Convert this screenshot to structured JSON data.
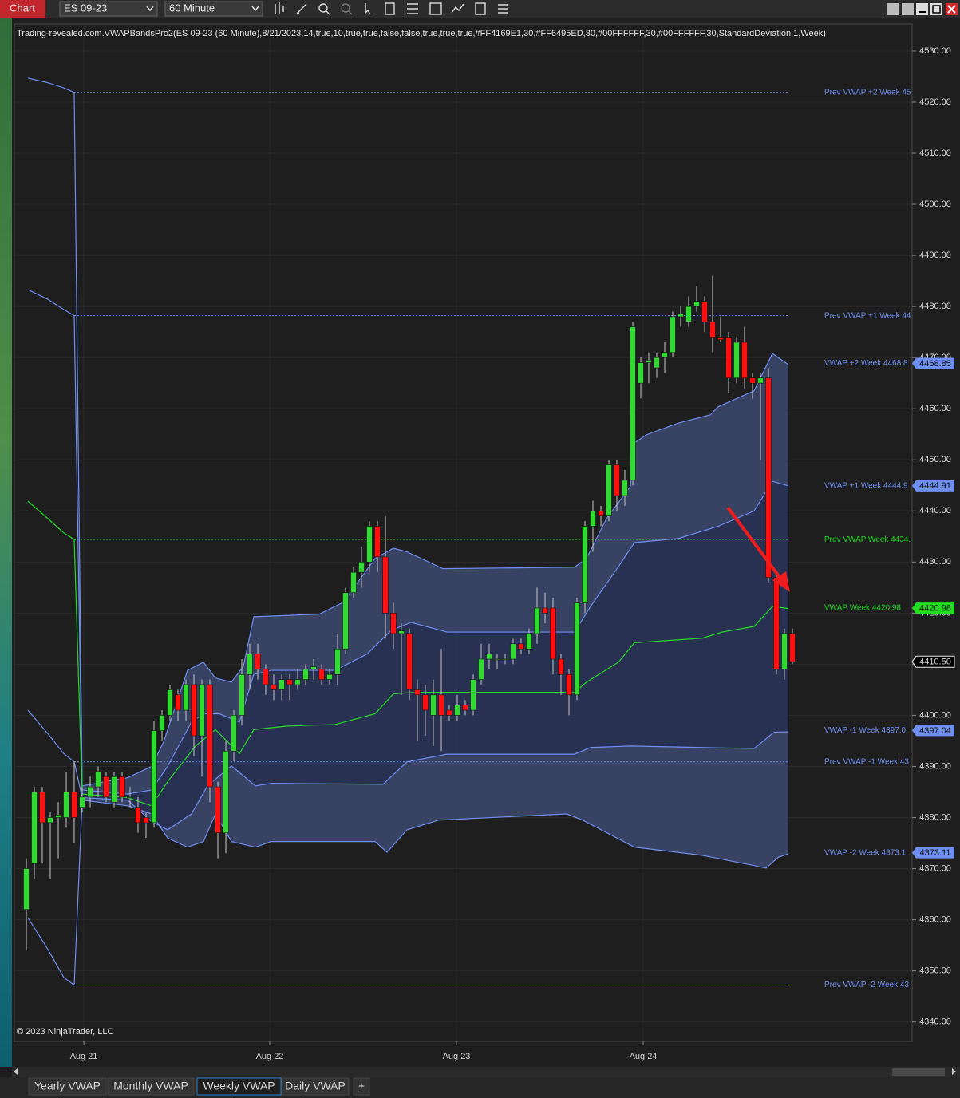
{
  "toolbar": {
    "app": "Chart",
    "instrument": "ES 09-23",
    "interval": "60 Minute"
  },
  "tabs": [
    "Yearly VWAP",
    "Monthly VWAP",
    "Weekly VWAP",
    "Daily VWAP",
    "+"
  ],
  "active_tab": 2,
  "chart_data": {
    "type": "candlestick",
    "title": "Trading-revealed.com.VWAPBandsPro2(ES 09-23 (60 Minute),8/21/2023,14,true,10,true,true,false,false,true,true,true,#FF4169E1,30,#FF6495ED,30,#00FFFFFF,30,#00FFFFFF,30,StandardDeviation,1,Week)",
    "footer": "© 2023 NinjaTrader, LLC",
    "up_color": "#33d933",
    "down_color": "#ff1010",
    "wick_color": "#c8c8c8",
    "open": [
      4362,
      4371,
      4385,
      4379,
      4380,
      4380,
      4385,
      4382,
      4384,
      4386,
      4388,
      4383,
      4388,
      4384,
      4382,
      4380,
      4379,
      4397,
      4400,
      4404,
      4401,
      4406,
      4396,
      4406,
      4386,
      4377,
      4393,
      4400,
      4408,
      4412,
      4409,
      4406,
      4405,
      4407,
      4406,
      4407,
      4409,
      4409,
      4407,
      4408,
      4413,
      4424,
      4428,
      4430,
      4437,
      4431,
      4420,
      4416,
      4416,
      4405,
      4404,
      4400,
      4404,
      4401,
      4400,
      4402,
      4401,
      4407,
      4411,
      4411,
      4411,
      4411,
      4414,
      4413,
      4416,
      4421,
      4421,
      4411,
      4408,
      4404,
      4422,
      4437,
      4440,
      4439,
      4449,
      4443,
      4446,
      4465,
      4469,
      4468,
      4470,
      4471,
      4478,
      4477,
      4480,
      4481,
      4477,
      4474,
      4474,
      4466,
      4473,
      4466,
      4465,
      4466,
      4427,
      4409,
      4416
    ],
    "high": [
      4372,
      4386,
      4386,
      4381,
      4383,
      4389,
      4391,
      4386,
      4388,
      4390,
      4389,
      4389,
      4389,
      4386,
      4384,
      4381,
      4399,
      4401,
      4406,
      4405,
      4407,
      4408,
      4407,
      4407,
      4387,
      4395,
      4401,
      4411,
      4414,
      4414,
      4410,
      4408,
      4408,
      4408,
      4409,
      4410,
      4411,
      4410,
      4409,
      4416,
      4425,
      4429,
      4433,
      4438,
      4438,
      4439,
      4422,
      4418,
      4417,
      4407,
      4406,
      4407,
      4413,
      4402,
      4404,
      4403,
      4408,
      4414,
      4414,
      4412,
      4412,
      4415,
      4415,
      4417,
      4425,
      4424,
      4423,
      4412,
      4409,
      4423,
      4438,
      4442,
      4441,
      4450,
      4450,
      4448,
      4477,
      4470,
      4471,
      4471,
      4473,
      4479,
      4480,
      4482,
      4484,
      4482,
      4486,
      4478,
      4475,
      4474,
      4476,
      4467,
      4467,
      4468,
      4428,
      4417,
      4417
    ],
    "low": [
      4354,
      4368,
      4371,
      4368,
      4372,
      4378,
      4375,
      4381,
      4382,
      4384,
      4383,
      4382,
      4383,
      4382,
      4377,
      4376,
      4378,
      4395,
      4399,
      4399,
      4399,
      4392,
      4388,
      4383,
      4372,
      4373,
      4391,
      4398,
      4405,
      4407,
      4404,
      4403,
      4403,
      4403,
      4405,
      4406,
      4407,
      4406,
      4406,
      4406,
      4412,
      4423,
      4425,
      4428,
      4428,
      4415,
      4413,
      4404,
      4403,
      4395,
      4396,
      4394,
      4393,
      4399,
      4399,
      4400,
      4400,
      4406,
      4409,
      4409,
      4410,
      4410,
      4412,
      4412,
      4414,
      4418,
      4408,
      4404,
      4400,
      4403,
      4420,
      4432,
      4437,
      4438,
      4440,
      4441,
      4445,
      4462,
      4465,
      4466,
      4467,
      4470,
      4476,
      4476,
      4479,
      4475,
      4471,
      4473,
      4463,
      4465,
      4464,
      4462,
      4450,
      4426,
      4408,
      4407,
      4410
    ],
    "close": [
      4370,
      4385,
      4379,
      4380,
      4380.5,
      4385,
      4380,
      4384,
      4386,
      4389,
      4384,
      4388,
      4384,
      4384,
      4379,
      4379,
      4397,
      4400,
      4405,
      4401,
      4406,
      4396,
      4406,
      4386,
      4377,
      4393,
      4400,
      4408,
      4412,
      4409,
      4406,
      4405,
      4407,
      4406,
      4407,
      4409,
      4409.5,
      4407,
      4408,
      4413,
      4424,
      4428,
      4430,
      4437,
      4431,
      4420,
      4416,
      4416.5,
      4405,
      4404,
      4401,
      4404,
      4400,
      4400,
      4402,
      4401,
      4407,
      4411,
      4412,
      4411,
      4411,
      4414,
      4413,
      4416,
      4421,
      4420,
      4411,
      4408,
      4404,
      4422,
      4437,
      4440,
      4439,
      4449,
      4443,
      4446,
      4476,
      4469,
      4469.5,
      4470,
      4471,
      4478,
      4478.5,
      4480,
      4481,
      4477,
      4474,
      4473.5,
      4466,
      4473,
      4466,
      4465,
      4466,
      4427,
      4409,
      4416,
      4410.5
    ],
    "last_price": {
      "value": 4410.5,
      "label": "4410.50"
    },
    "series": [
      {
        "name": "VWAP +2 Week 4468.8",
        "color": "#6f8ff0",
        "badge": 4468.85,
        "x": [
          0.2,
          2.7,
          4.7,
          6,
          7,
          12.7,
          15.7,
          17.2,
          20.2,
          22.2,
          23.7,
          25.7,
          27.2,
          28.5,
          36.7,
          39.7,
          43.7,
          46,
          47.7,
          52.2,
          68.7,
          70.2,
          72.7,
          75.7,
          76.2,
          77.7,
          81.7,
          85.7,
          86.7,
          91.2,
          93.5,
          95.5
        ],
        "values": [
          4524.7,
          4523.8,
          4522.8,
          4521.9,
          4386.2,
          4387.8,
          4390,
          4394.8,
          4408.8,
          4410.4,
          4407.3,
          4406.5,
          4409.6,
          4419.3,
          4419.8,
          4422.1,
          4430.7,
          4432.7,
          4432,
          4428.7,
          4429,
          4430.7,
          4438.5,
          4444.8,
          4453.3,
          4454.9,
          4457.2,
          4458.8,
          4460.4,
          4463.5,
          4470.8,
          4468.6
        ]
      },
      {
        "name": "VWAP +1 Week 4444.9",
        "color": "#6f8ff0",
        "badge": 4444.91,
        "x": [
          0.2,
          2.7,
          4.7,
          6,
          7,
          12.7,
          15.7,
          17.7,
          20.7,
          22.2,
          24.2,
          26.7,
          28.5,
          30.7,
          38.7,
          42.7,
          45.7,
          48.2,
          52.7,
          68.7,
          70.7,
          74.2,
          76.2,
          81.7,
          86.7,
          91.2,
          93.5,
          95.5
        ],
        "values": [
          4483.3,
          4481.4,
          4479.4,
          4478.2,
          4385.4,
          4384.6,
          4385.4,
          4390,
          4398.7,
          4400.3,
          4400.3,
          4398.7,
          4408,
          4408.8,
          4408.8,
          4412,
          4416.6,
          4418.2,
          4416.3,
          4416.3,
          4421.3,
          4429.1,
          4433.8,
          4434.6,
          4437,
          4440,
          4445.8,
          4444.9
        ]
      },
      {
        "name": "VWAP Week 4420.98",
        "color": "#22dd22",
        "badge": 4420.98,
        "x": [
          0.2,
          2.7,
          4.7,
          6,
          7,
          12.7,
          15.7,
          17.7,
          21.2,
          23.7,
          26.7,
          28.5,
          32.7,
          38.7,
          43.7,
          46,
          48.7,
          56.7,
          68.7,
          70.2,
          74.2,
          76.2,
          84.7,
          87.2,
          91.2,
          93.5,
          95.5
        ],
        "values": [
          4441.9,
          4438.5,
          4435.7,
          4434.4,
          4384.6,
          4383.9,
          4382.3,
          4387,
          4394,
          4397.2,
          4392.5,
          4397.2,
          4397.9,
          4398.2,
          4400.3,
          4404.2,
          4404.5,
          4404.5,
          4404.5,
          4406.5,
          4410.4,
          4414.2,
          4415.1,
          4416.3,
          4417.4,
          4421.3,
          4420.9
        ]
      },
      {
        "name": "VWAP -1 Week 4397.0",
        "color": "#6f8ff0",
        "badge": 4397.04,
        "x": [
          0.2,
          2.7,
          4.7,
          6,
          7,
          12.7,
          15.7,
          17.7,
          20.7,
          22.7,
          25.7,
          28.7,
          30.7,
          44.7,
          47.7,
          52.7,
          68.7,
          70.7,
          75.7,
          84.7,
          91.2,
          93.7,
          95.5
        ],
        "values": [
          4401,
          4396.4,
          4392.5,
          4390.9,
          4383.9,
          4383.4,
          4379.2,
          4377.6,
          4380.7,
          4386.2,
          4390.1,
          4386.2,
          4386.7,
          4386.5,
          4390.9,
          4392.4,
          4392.4,
          4393.7,
          4394,
          4393.7,
          4393.5,
          4396.7,
          4396.8
        ]
      },
      {
        "name": "VWAP -2 Week 4373.1",
        "color": "#6f8ff0",
        "badge": 4373.11,
        "x": [
          0.2,
          2.7,
          4.7,
          6,
          7,
          12.7,
          15.7,
          17.7,
          20.2,
          22.2,
          23.7,
          25.7,
          28.7,
          30.7,
          43.7,
          45.2,
          47.7,
          51.7,
          67.7,
          69.7,
          76.2,
          84.7,
          91.2,
          92.7,
          94.2,
          95.5
        ],
        "values": [
          4360.4,
          4354.2,
          4348.7,
          4347.2,
          4383.4,
          4382.3,
          4380.7,
          4376,
          4374.2,
          4375.3,
          4380.7,
          4375.3,
          4374.2,
          4375.3,
          4375.3,
          4373.2,
          4377.6,
          4379.5,
          4380.7,
          4379.5,
          4374.2,
          4372.6,
          4370.6,
          4370.1,
          4372.2,
          4372.9
        ]
      }
    ],
    "prev_levels": [
      {
        "name": "Prev VWAP +2 Week 45",
        "value": 4521.9,
        "color": "#6f8ff0"
      },
      {
        "name": "Prev VWAP +1 Week 44",
        "value": 4478.2,
        "color": "#6f8ff0"
      },
      {
        "name": "Prev VWAP Week 4434.",
        "value": 4434.4,
        "color": "#22dd22"
      },
      {
        "name": "Prev VWAP -1 Week 43",
        "value": 4390.9,
        "color": "#6f8ff0"
      },
      {
        "name": "Prev VWAP -2 Week 43",
        "value": 4347.2,
        "color": "#6f8ff0"
      }
    ],
    "xlim": [
      -1.5,
      111
    ],
    "xticks": [
      {
        "value": 7.2,
        "label": "Aug 21"
      },
      {
        "value": 30.5,
        "label": "Aug 22"
      },
      {
        "value": 53.9,
        "label": "Aug 23"
      },
      {
        "value": 77.3,
        "label": "Aug 24"
      }
    ],
    "ylim": [
      4336.2,
      4535.3
    ],
    "yticks": [
      {
        "value": 4340,
        "label": "4340.00"
      },
      {
        "value": 4350,
        "label": "4350.00"
      },
      {
        "value": 4360,
        "label": "4360.00"
      },
      {
        "value": 4370,
        "label": "4370.00"
      },
      {
        "value": 4380,
        "label": "4380.00"
      },
      {
        "value": 4390,
        "label": "4390.00"
      },
      {
        "value": 4400,
        "label": "4400.00"
      },
      {
        "value": 4410,
        "label": "4410.00"
      },
      {
        "value": 4420,
        "label": "4420.00"
      },
      {
        "value": 4430,
        "label": "4430.00"
      },
      {
        "value": 4440,
        "label": "4440.00"
      },
      {
        "value": 4450,
        "label": "4450.00"
      },
      {
        "value": 4460,
        "label": "4460.00"
      },
      {
        "value": 4470,
        "label": "4470.00"
      },
      {
        "value": 4480,
        "label": "4480.00"
      },
      {
        "value": 4490,
        "label": "4490.00"
      },
      {
        "value": 4500,
        "label": "4500.00"
      },
      {
        "value": 4510,
        "label": "4510.00"
      },
      {
        "value": 4520,
        "label": "4520.00"
      },
      {
        "value": 4530,
        "label": "4530.00"
      }
    ],
    "grid": true
  }
}
